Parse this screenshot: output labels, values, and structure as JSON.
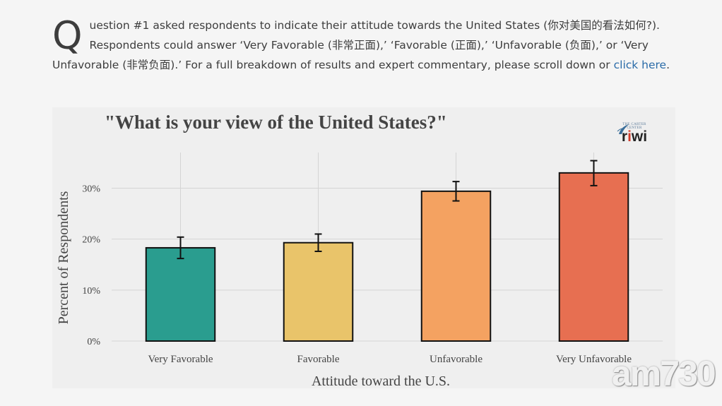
{
  "intro": {
    "dropcap": "Q",
    "text": "uestion #1 asked respondents to indicate their attitude towards the United States (你对美国的看法如何?). Respondents could answer ‘Very Favorable (非常正面),’ ‘Favorable (正面),’ ‘Unfavorable (负面),’ or ‘Very Unfavorable (非常负面).’ For a full breakdown of results and expert commentary, please scroll down or ",
    "link": "click here",
    "tail": "."
  },
  "logos": {
    "carter": "THE CARTER CENTER",
    "riwi_prefix": "r",
    "riwi_dot": "i",
    "riwi_suffix": "wi"
  },
  "watermark": "am730",
  "chart_data": {
    "type": "bar",
    "title": "\"What is your view of the United States?\"",
    "xlabel": "Attitude toward the U.S.",
    "ylabel": "Percent of Respondents",
    "categories": [
      "Very Favorable",
      "Favorable",
      "Unfavorable",
      "Very Unfavorable"
    ],
    "values": [
      18.3,
      19.3,
      29.4,
      33.0
    ],
    "error_low": [
      16.2,
      17.6,
      27.5,
      30.5
    ],
    "error_high": [
      20.4,
      21.0,
      31.3,
      35.4
    ],
    "colors": [
      "#2a9d8f",
      "#e9c46a",
      "#f4a261",
      "#e76f51"
    ],
    "ylim": [
      0,
      37
    ],
    "yticks": [
      0,
      10,
      20,
      30
    ],
    "ytick_labels": [
      "0%",
      "10%",
      "20%",
      "30%"
    ],
    "grid": true,
    "legend": "none"
  }
}
